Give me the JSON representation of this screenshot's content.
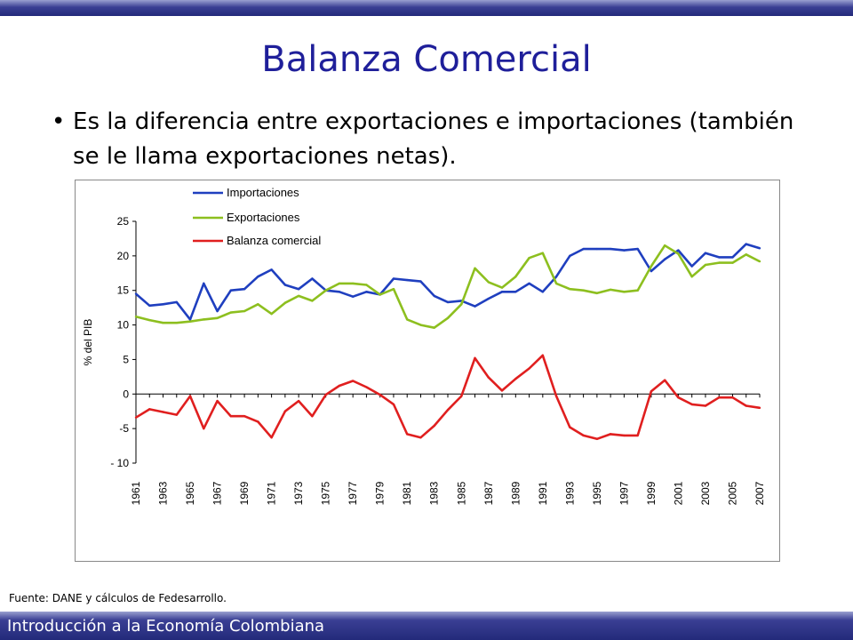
{
  "slide": {
    "title": "Balanza Comercial",
    "bullet": "Es la diferencia entre exportaciones e importaciones (también se le llama exportaciones netas).",
    "source": "Fuente: DANE y cálculos de Fedesarrollo.",
    "footer": "Introducción a la Economía Colombiana"
  },
  "colors": {
    "title": "#1f1f9a",
    "bar": "#232a7a",
    "importaciones": "#1f3fbf",
    "exportaciones": "#8dbf1f",
    "balanza": "#e01f1f"
  },
  "chart_data": {
    "type": "line",
    "title": "",
    "xlabel": "",
    "ylabel": "%  del PIB",
    "ylim": [
      -10,
      25
    ],
    "yticks": [
      -10,
      -5,
      0,
      5,
      10,
      15,
      20,
      25
    ],
    "ytick_labels": [
      "- 10",
      "-5",
      "0",
      "5",
      "10",
      "15",
      "20",
      "25"
    ],
    "x": [
      1961,
      1962,
      1963,
      1964,
      1965,
      1966,
      1967,
      1968,
      1969,
      1970,
      1971,
      1972,
      1973,
      1974,
      1975,
      1976,
      1977,
      1978,
      1979,
      1980,
      1981,
      1982,
      1983,
      1984,
      1985,
      1986,
      1987,
      1988,
      1989,
      1990,
      1991,
      1992,
      1993,
      1994,
      1995,
      1996,
      1997,
      1998,
      1999,
      2000,
      2001,
      2002,
      2003,
      2004,
      2005,
      2006,
      2007
    ],
    "xtick_labels": [
      "1961",
      "1963",
      "1965",
      "1967",
      "1969",
      "1971",
      "1973",
      "1975",
      "1977",
      "1979",
      "1981",
      "1983",
      "1985",
      "1987",
      "1989",
      "1991",
      "1993",
      "1995",
      "1997",
      "1999",
      "2001",
      "2003",
      "2005",
      "2007"
    ],
    "legend": "top-left",
    "series": [
      {
        "name": "Importaciones",
        "color": "#1f3fbf",
        "values": [
          14.5,
          12.8,
          13.0,
          13.3,
          10.8,
          16.0,
          12.0,
          15.0,
          15.2,
          17.0,
          18.0,
          15.8,
          15.2,
          16.7,
          15.0,
          14.8,
          14.1,
          14.8,
          14.4,
          16.7,
          16.5,
          16.3,
          14.2,
          13.3,
          13.5,
          12.7,
          13.8,
          14.8,
          14.8,
          16.0,
          14.8,
          17.0,
          20.0,
          21.0,
          21.0,
          21.0,
          20.8,
          21.0,
          17.8,
          19.5,
          20.8,
          18.5,
          20.4,
          19.8,
          19.8,
          21.7,
          21.1
        ]
      },
      {
        "name": "Exportaciones",
        "color": "#8dbf1f",
        "values": [
          11.2,
          10.7,
          10.3,
          10.3,
          10.5,
          10.8,
          11.0,
          11.8,
          12.0,
          13.0,
          11.6,
          13.2,
          14.2,
          13.5,
          15.0,
          16.0,
          16.0,
          15.8,
          14.4,
          15.2,
          10.8,
          10.0,
          9.6,
          11.0,
          13.0,
          18.2,
          16.2,
          15.4,
          17.0,
          19.7,
          20.4,
          16.0,
          15.2,
          15.0,
          14.6,
          15.1,
          14.8,
          15.0,
          18.5,
          21.5,
          20.3,
          17.0,
          18.7,
          19.0,
          19.0,
          20.2,
          19.2
        ]
      },
      {
        "name": "Balanza comercial",
        "color": "#e01f1f",
        "values": [
          -3.4,
          -2.2,
          -2.6,
          -3.0,
          -0.3,
          -5.0,
          -1.0,
          -3.2,
          -3.2,
          -4.0,
          -6.3,
          -2.5,
          -1.0,
          -3.2,
          -0.1,
          1.2,
          1.9,
          1.0,
          -0.1,
          -1.5,
          -5.8,
          -6.3,
          -4.6,
          -2.3,
          -0.3,
          5.2,
          2.4,
          0.5,
          2.2,
          3.7,
          5.6,
          -0.3,
          -4.8,
          -6.0,
          -6.5,
          -5.8,
          -6.0,
          -6.0,
          0.4,
          2.0,
          -0.5,
          -1.5,
          -1.7,
          -0.5,
          -0.5,
          -1.7,
          -2.0
        ]
      }
    ]
  }
}
